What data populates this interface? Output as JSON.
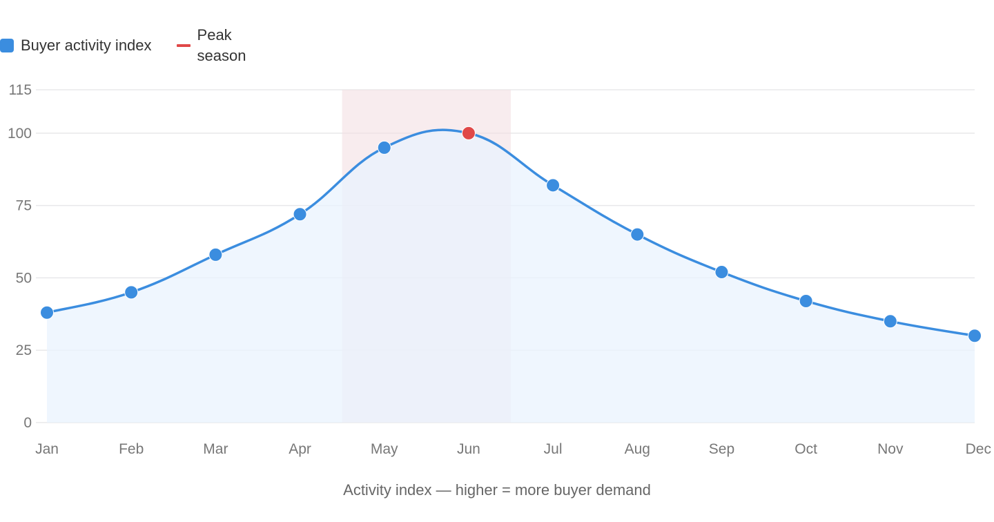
{
  "legend": {
    "series_label": "Buyer activity index",
    "band_label": "Peak season"
  },
  "colors": {
    "line": "#3b8ddf",
    "area": "#eaf3fd",
    "band": "#f3dce0",
    "peak_point": "#e04848",
    "grid": "#e8e8ea"
  },
  "chart_data": {
    "type": "line",
    "categories": [
      "Jan",
      "Feb",
      "Mar",
      "Apr",
      "May",
      "Jun",
      "Jul",
      "Aug",
      "Sep",
      "Oct",
      "Nov",
      "Dec"
    ],
    "series": [
      {
        "name": "Buyer activity index",
        "values": [
          38,
          45,
          58,
          72,
          95,
          100,
          82,
          65,
          52,
          42,
          35,
          30
        ]
      }
    ],
    "peak_category": "Jun",
    "band": {
      "name": "Peak season",
      "from": "Apr",
      "to": "Jul"
    },
    "yticks": [
      0,
      25,
      50,
      75,
      100,
      115
    ],
    "ylim": [
      0,
      115
    ],
    "grid": true,
    "legend_position": "top-left",
    "xlabel": "Activity index — higher = more buyer demand",
    "ylabel": ""
  }
}
